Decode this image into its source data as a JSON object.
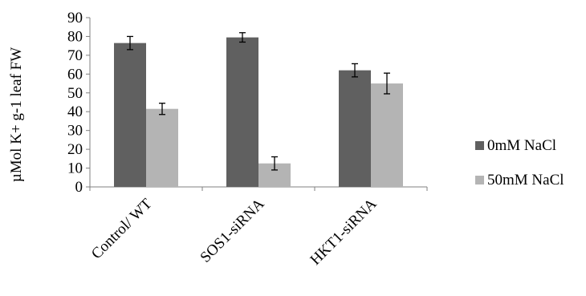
{
  "chart_data": {
    "type": "bar",
    "title": "",
    "xlabel": "",
    "ylabel": "µMol K+ g-1 leaf FW",
    "ylim": [
      0,
      90
    ],
    "yticks": [
      0,
      10,
      20,
      30,
      40,
      50,
      60,
      70,
      80,
      90
    ],
    "grid": false,
    "legend_position": "right",
    "categories": [
      "Control/ WT",
      "SOS1-siRNA",
      "HKT1-siRNA"
    ],
    "series": [
      {
        "name": "0mM NaCl",
        "color": "#606060",
        "values": [
          76.5,
          79.5,
          62
        ],
        "errors": [
          3.5,
          2.5,
          3.5
        ]
      },
      {
        "name": "50mM NaCl",
        "color": "#b4b4b4",
        "values": [
          41.5,
          12.5,
          55
        ],
        "errors": [
          3,
          3.5,
          5.5
        ]
      }
    ]
  }
}
